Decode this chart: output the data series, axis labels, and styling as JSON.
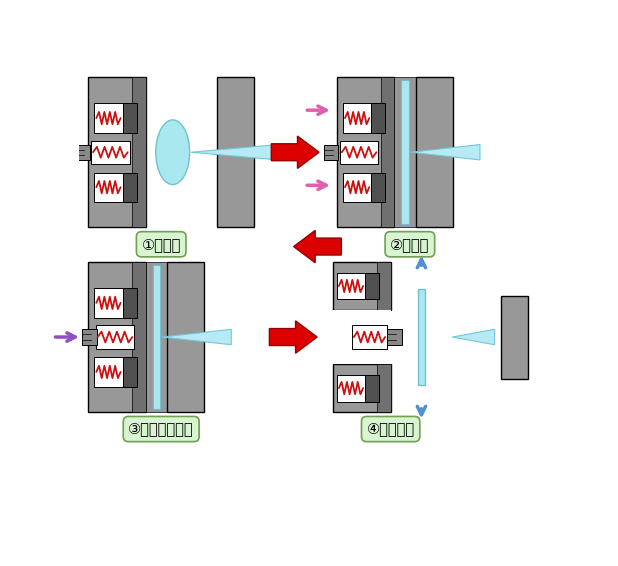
{
  "bg_color": "#ffffff",
  "gray_mold": "#989898",
  "gray_inner": "#b0b0b0",
  "gray_dark_block": "#505050",
  "white": "#ffffff",
  "cyan_disc": "#aae8f0",
  "cyan_nozzle": "#b8eaf5",
  "red_spring": "#cc1010",
  "pink_arrow": "#e060b0",
  "blue_arrow": "#5090d0",
  "purple_arrow": "#9050c0",
  "red_big_arrow": "#dd0000",
  "label_bg": "#d8f4d0",
  "label_edge": "#70a050",
  "labels": [
    "①射　出",
    "②圧　縮",
    "③ゲートカット",
    "④製品取出"
  ],
  "figsize": [
    6.18,
    5.66
  ],
  "dpi": 100
}
